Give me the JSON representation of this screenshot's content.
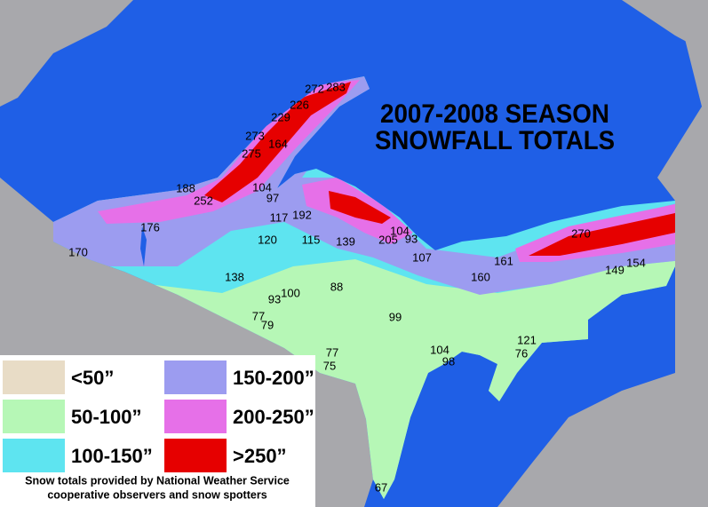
{
  "title": [
    "2007-2008 SEASON",
    "SNOWFALL TOTALS"
  ],
  "legend": [
    {
      "label": "<50”",
      "color": "#e8dcc6"
    },
    {
      "label": "150-200”",
      "color": "#9c9cf0"
    },
    {
      "label": "50-100”",
      "color": "#b6f7b6"
    },
    {
      "label": "200-250”",
      "color": "#e670e8"
    },
    {
      "label": "100-150”",
      "color": "#5ee4f0"
    },
    {
      "label": ">250”",
      "color": "#e60000"
    }
  ],
  "note": [
    "Snow totals provided by National Weather Service",
    "cooperative observers and snow spotters"
  ],
  "stations": [
    272,
    283,
    226,
    229,
    273,
    164,
    275,
    188,
    252,
    104,
    97,
    117,
    192,
    176,
    120,
    115,
    139,
    205,
    104,
    93,
    107,
    170,
    161,
    160,
    270,
    149,
    154,
    138,
    93,
    100,
    88,
    99,
    77,
    79,
    104,
    98,
    121,
    76,
    77,
    75,
    67
  ]
}
